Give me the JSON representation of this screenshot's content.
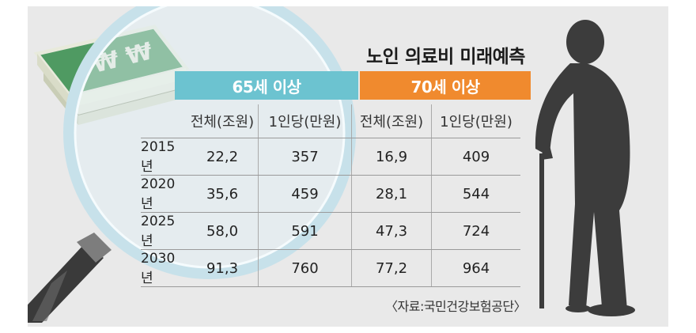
{
  "title": "노인 의료비 미래예측",
  "groups": [
    {
      "label": "65세 이상",
      "color": "#6cc3d0"
    },
    {
      "label": "70세 이상",
      "color": "#f08a2e"
    }
  ],
  "columns": [
    "전체(조원)",
    "1인당(만원)",
    "전체(조원)",
    "1인당(만원)"
  ],
  "rows": [
    {
      "year": "2015년",
      "v": [
        "22,2",
        "357",
        "16,9",
        "409"
      ]
    },
    {
      "year": "2020년",
      "v": [
        "35,6",
        "459",
        "28,1",
        "544"
      ]
    },
    {
      "year": "2025년",
      "v": [
        "58,0",
        "591",
        "47,3",
        "724"
      ]
    },
    {
      "year": "2030년",
      "v": [
        "91,3",
        "760",
        "77,2",
        "964"
      ]
    }
  ],
  "source": "〈자료:국민건강보험공단〉"
}
